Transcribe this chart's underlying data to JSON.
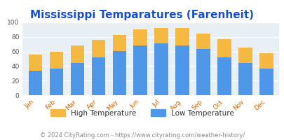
{
  "months": [
    "Jan",
    "Feb",
    "Mar",
    "Apr",
    "May",
    "Jun",
    "Jul",
    "Aug",
    "Sep",
    "Oct",
    "Nov",
    "Dec"
  ],
  "low_temps": [
    34,
    37,
    44,
    52,
    61,
    68,
    71,
    68,
    63,
    52,
    44,
    37
  ],
  "high_temps": [
    56,
    60,
    68,
    76,
    83,
    90,
    92,
    92,
    85,
    77,
    65,
    58
  ],
  "low_color": "#4d96e8",
  "high_color": "#f5b942",
  "title": "Mississippi Temparatures (Farenheit)",
  "title_color": "#1a4fcc",
  "title_fontsize": 11,
  "axis_label_color": "#cc6600",
  "ytick_color": "#555555",
  "ylabel_max": 100,
  "background_color": "#e8f0f5",
  "plot_bg_color": "#e8f0f5",
  "footer_text": "© 2024 CityRating.com - https://www.cityrating.com/weather-history/",
  "footer_color": "#888888",
  "footer_fontsize": 6,
  "legend_high_label": "High Temperature",
  "legend_low_label": "Low Temperature"
}
